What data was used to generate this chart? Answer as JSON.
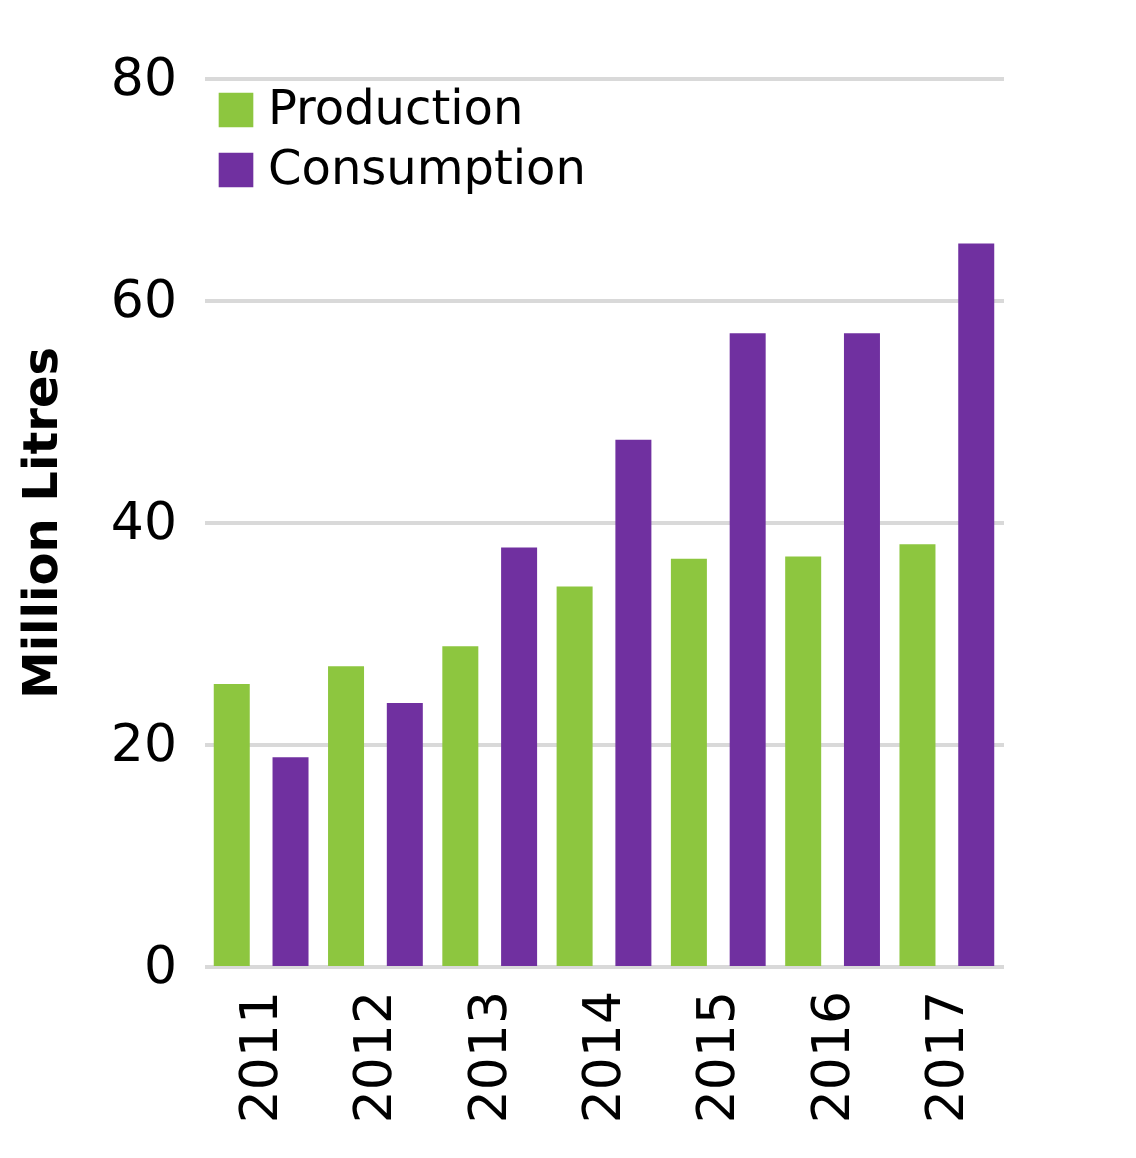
{
  "chart_data": {
    "type": "bar",
    "ylabel": "Million Litres",
    "categories": [
      "2011",
      "2012",
      "2013",
      "2014",
      "2015",
      "2016",
      "2017"
    ],
    "series": [
      {
        "name": "Production",
        "color": "#8dc63f",
        "values": [
          25.4,
          27.0,
          28.8,
          34.2,
          36.7,
          36.9,
          38.0
        ]
      },
      {
        "name": "Consumption",
        "color": "#7030a0",
        "values": [
          18.8,
          23.7,
          37.7,
          47.4,
          57.0,
          57.0,
          65.1
        ]
      }
    ],
    "ylim": [
      0,
      80
    ],
    "yticks": [
      0,
      20,
      40,
      60,
      80
    ],
    "grid": "y",
    "legend": "top left"
  }
}
